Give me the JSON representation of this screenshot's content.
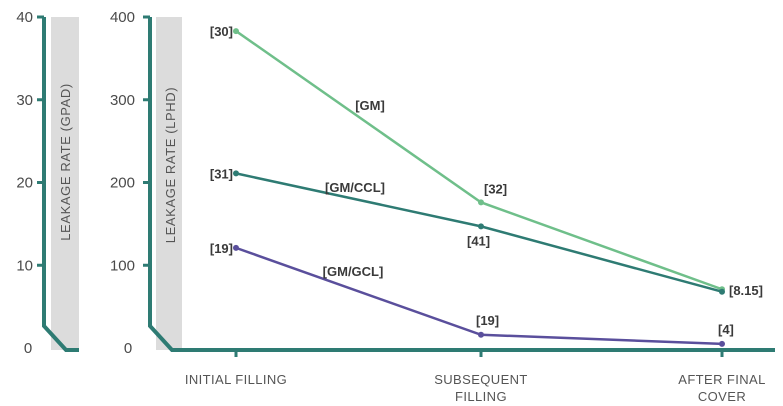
{
  "chart_data": {
    "type": "line",
    "categories": [
      [
        "INITIAL FILLING"
      ],
      [
        "SUBSEQUENT",
        "FILLING"
      ],
      [
        "AFTER FINAL",
        "COVER"
      ]
    ],
    "y_left": {
      "label": "LEAKAGE RATE (GPAD)",
      "ticks": [
        0,
        10,
        20,
        30,
        40
      ],
      "ylim": [
        0,
        40
      ]
    },
    "y_right": {
      "label": "LEAKAGE RATE (LPHD)",
      "ticks": [
        0,
        100,
        200,
        300,
        400
      ],
      "ylim": [
        0,
        400
      ]
    },
    "series": [
      {
        "name": "[GM]",
        "color": "#6fbf8a",
        "values": [
          383,
          176,
          71
        ],
        "point_labels": [
          "[30]",
          "[32]",
          "[8.15]"
        ]
      },
      {
        "name": "[GM/CCL]",
        "color": "#2e7b73",
        "values": [
          211,
          147,
          68
        ],
        "point_labels": [
          "[31]",
          "[41]",
          ""
        ]
      },
      {
        "name": "[GM/GCL]",
        "color": "#5a4f9c",
        "values": [
          121,
          16,
          5
        ],
        "point_labels": [
          "[19]",
          "[19]",
          "[4]"
        ]
      }
    ],
    "axis_color": "#2e7b73",
    "band_color": "#dcdcdc",
    "grid": false
  }
}
